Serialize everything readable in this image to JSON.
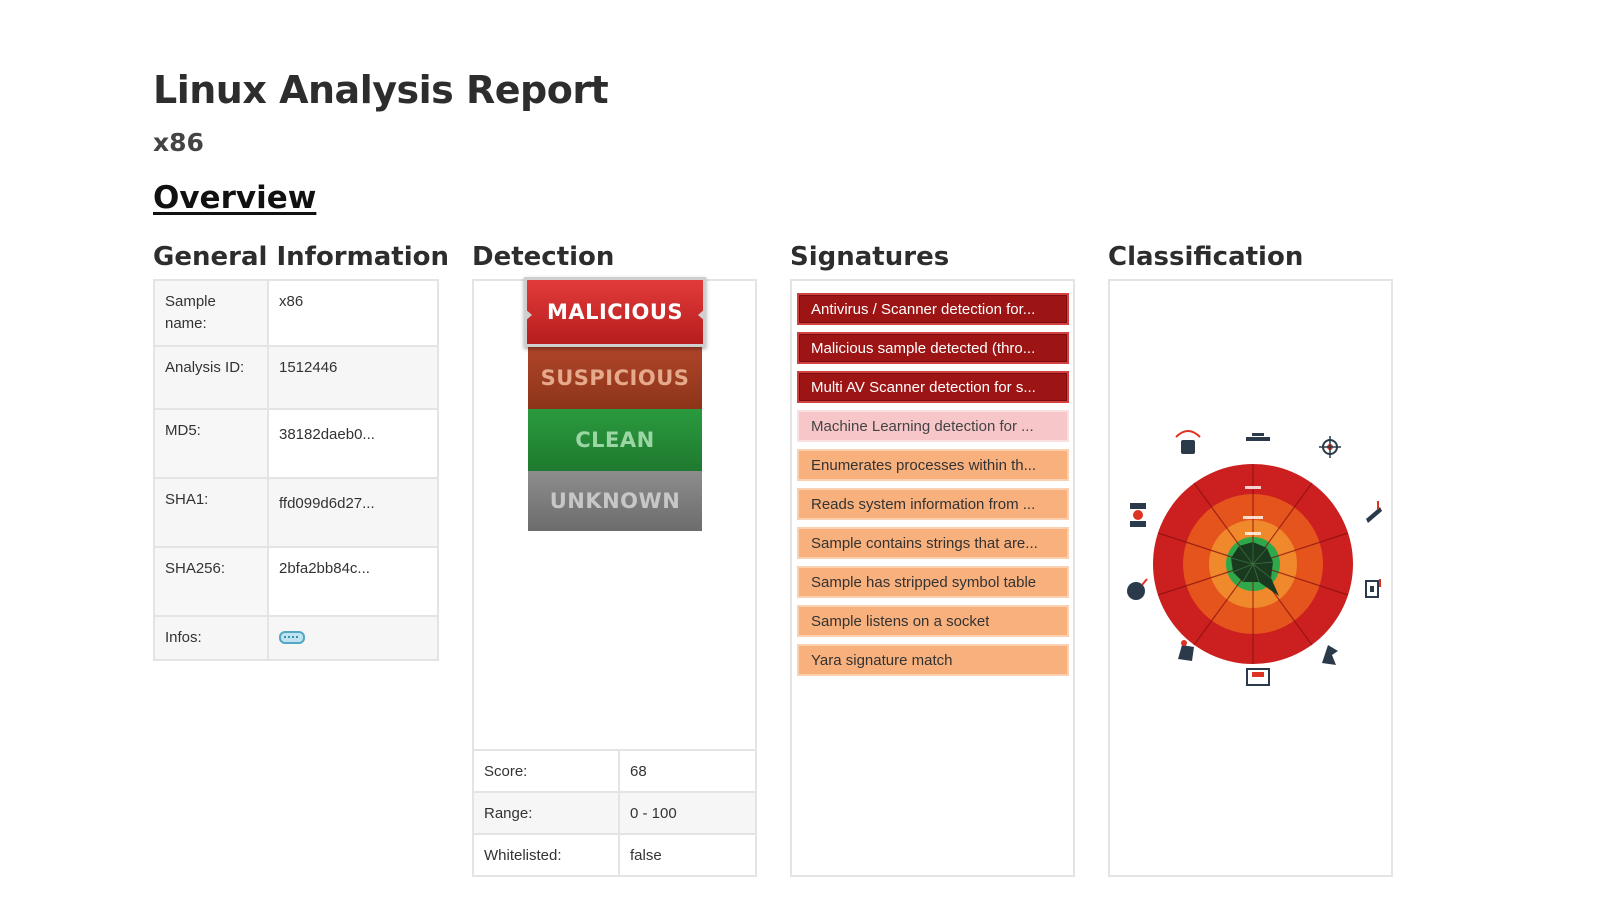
{
  "report": {
    "title": "Linux Analysis Report",
    "subtitle": "x86",
    "section": "Overview"
  },
  "columns": {
    "general": "General Information",
    "detection": "Detection",
    "signatures": "Signatures",
    "classification": "Classification"
  },
  "general_info": [
    {
      "label": "Sample name:",
      "value": "x86"
    },
    {
      "label": "Analysis ID:",
      "value": "1512446"
    },
    {
      "label": "MD5:",
      "value": "38182daeb0..."
    },
    {
      "label": "SHA1:",
      "value": "ffd099d6d27..."
    },
    {
      "label": "SHA256:",
      "value": "2bfa2bb84c..."
    },
    {
      "label": "Infos:",
      "value": ""
    }
  ],
  "detection": {
    "levels": [
      "MALICIOUS",
      "SUSPICIOUS",
      "CLEAN",
      "UNKNOWN"
    ],
    "selected": "MALICIOUS",
    "stats": [
      {
        "label": "Score:",
        "value": "68"
      },
      {
        "label": "Range:",
        "value": "0 - 100"
      },
      {
        "label": "Whitelisted:",
        "value": "false"
      }
    ]
  },
  "signatures": [
    {
      "text": "Antivirus / Scanner detection for...",
      "severity": "high"
    },
    {
      "text": "Malicious sample detected (thro...",
      "severity": "high"
    },
    {
      "text": "Multi AV Scanner detection for s...",
      "severity": "high"
    },
    {
      "text": "Machine Learning detection for ...",
      "severity": "ml"
    },
    {
      "text": "Enumerates processes within th...",
      "severity": "medium"
    },
    {
      "text": "Reads system information from ...",
      "severity": "medium"
    },
    {
      "text": "Sample contains strings that are...",
      "severity": "medium"
    },
    {
      "text": "Sample has stripped symbol table",
      "severity": "medium"
    },
    {
      "text": "Sample listens on a socket",
      "severity": "medium"
    },
    {
      "text": "Yara signature match",
      "severity": "medium"
    }
  ],
  "classification": {
    "icons": [
      "ransomware-icon",
      "miner-icon",
      "spreading-icon",
      "phishing-icon",
      "banker-icon",
      "trojan-icon",
      "evader-icon",
      "spyware-icon",
      "exploiter-icon",
      "botnet-icon"
    ],
    "colors": {
      "outer": "#cc1f1f",
      "mid": "#e5541c",
      "inner": "#f0892b",
      "core": "#2ea84a"
    }
  },
  "colors": {
    "malicious": "#c62828",
    "suspicious": "#9a3b20",
    "clean": "#238c36",
    "unknown": "#7a7a7a"
  }
}
